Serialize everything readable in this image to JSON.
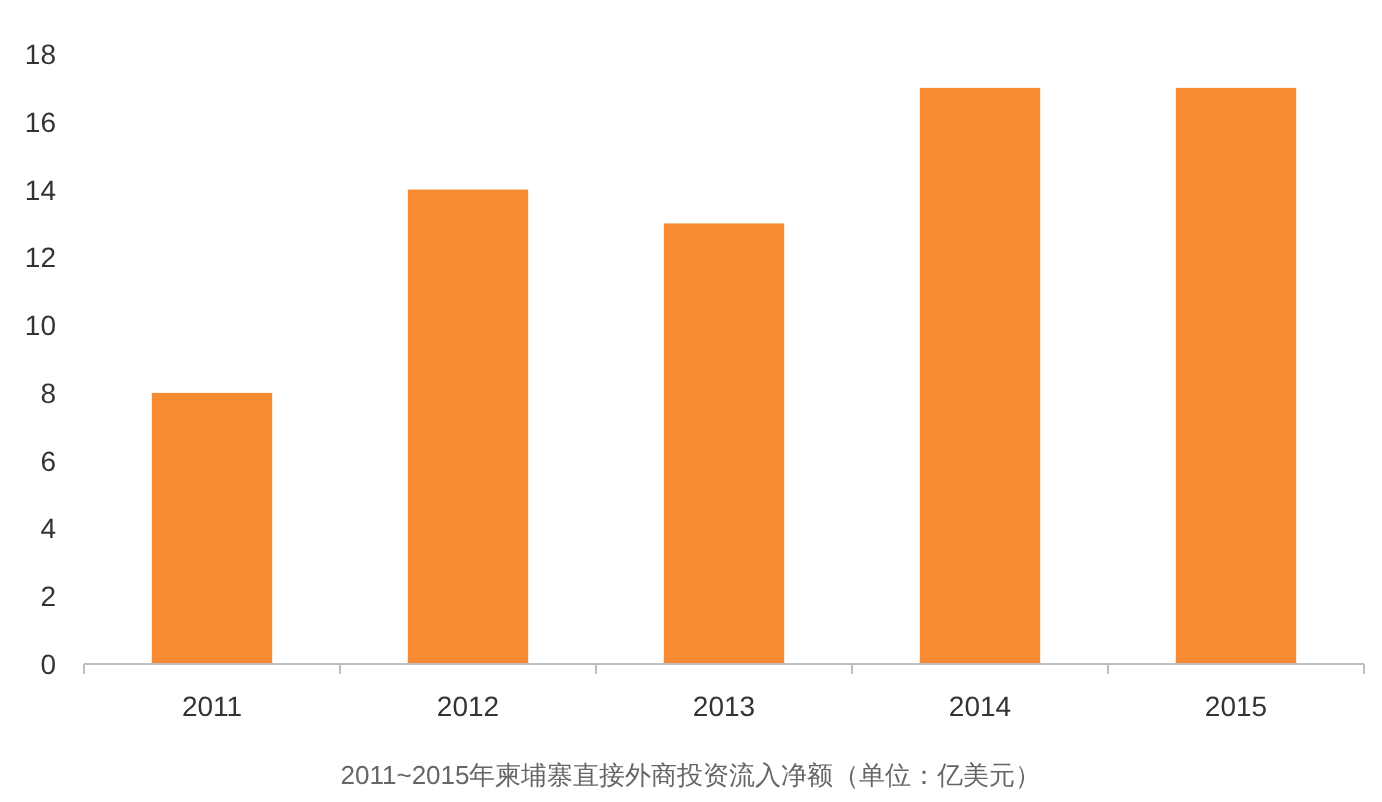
{
  "chart_data": {
    "type": "bar",
    "title": "2011~2015年柬埔寨直接外商投资流入净额（单位：亿美元）",
    "categories": [
      "2011",
      "2012",
      "2013",
      "2014",
      "2015"
    ],
    "values": [
      8,
      14,
      13,
      17,
      17
    ],
    "color": "#f68b33",
    "ylim": [
      0,
      18
    ],
    "yticks": [
      0,
      2,
      4,
      6,
      8,
      10,
      12,
      14,
      16,
      18
    ]
  }
}
